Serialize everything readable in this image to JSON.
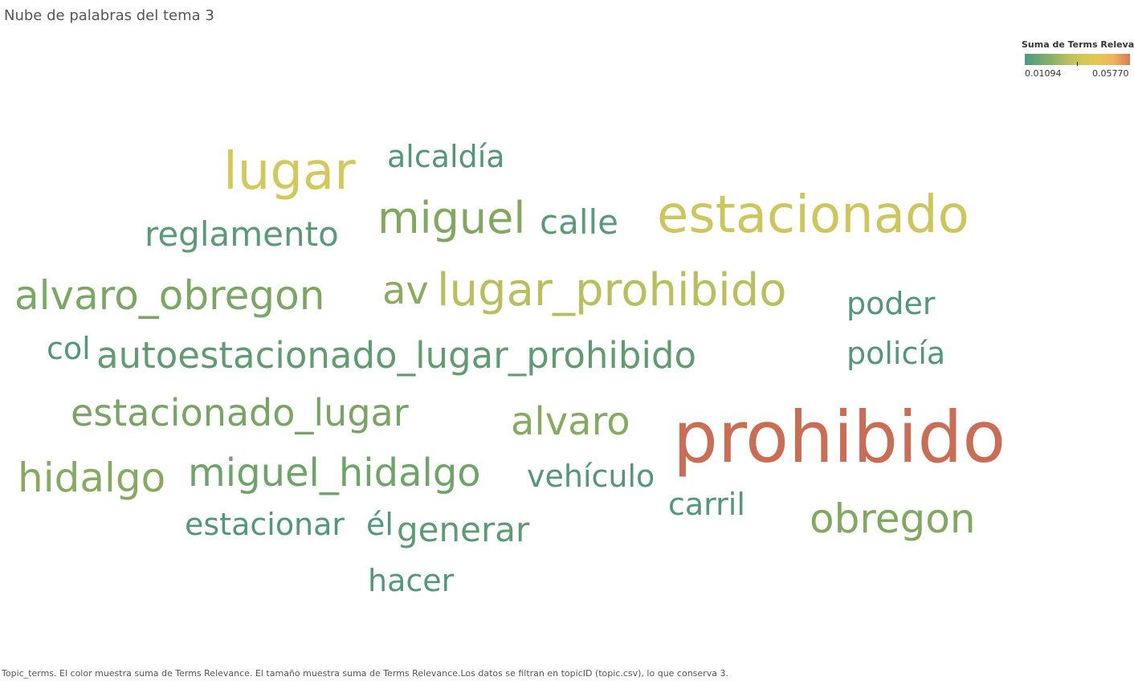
{
  "title": "Nube de palabras del tema 3",
  "legend": {
    "title": "Suma de Terms Relevan..",
    "min_label": "0.01094",
    "max_label": "0.05770"
  },
  "footer": "Topic_terms. El color muestra suma de Terms Relevance. El tamaño muestra suma de Terms Relevance.Los datos se filtran en topicID (topic.csv), lo que conserva 3.",
  "chart_data": {
    "type": "wordcloud",
    "measure": "Suma de Terms Relevance",
    "color_range": [
      0.01094,
      0.0577
    ],
    "color_scale": [
      "#4e9a7e",
      "#87b268",
      "#c9c55a",
      "#e2c94f",
      "#f0b45a",
      "#d87a55"
    ],
    "words": [
      {
        "text": "prohibido",
        "value": 0.0577,
        "color": "#c96d55"
      },
      {
        "text": "estacionado",
        "value": 0.041,
        "color": "#cdc65a"
      },
      {
        "text": "lugar",
        "value": 0.04,
        "color": "#d3c85a"
      },
      {
        "text": "lugar_prohibido",
        "value": 0.034,
        "color": "#b9bf5c"
      },
      {
        "text": "alvaro_obregon",
        "value": 0.026,
        "color": "#7aa864"
      },
      {
        "text": "obregon",
        "value": 0.024,
        "color": "#7fa960"
      },
      {
        "text": "miguel",
        "value": 0.024,
        "color": "#80a85f"
      },
      {
        "text": "hidalgo",
        "value": 0.024,
        "color": "#86ab60"
      },
      {
        "text": "miguel_hidalgo",
        "value": 0.022,
        "color": "#6fa469"
      },
      {
        "text": "av",
        "value": 0.022,
        "color": "#8aac5f"
      },
      {
        "text": "alvaro",
        "value": 0.022,
        "color": "#86ab60"
      },
      {
        "text": "estacionado_lugar",
        "value": 0.02,
        "color": "#77a664"
      },
      {
        "text": "autoestacionado_lugar_prohibido",
        "value": 0.019,
        "color": "#5f9d70"
      },
      {
        "text": "reglamento",
        "value": 0.017,
        "color": "#5a9a76"
      },
      {
        "text": "generar",
        "value": 0.017,
        "color": "#5d9b73"
      },
      {
        "text": "calle",
        "value": 0.016,
        "color": "#5a9a76"
      },
      {
        "text": "alcaldía",
        "value": 0.015,
        "color": "#53977a"
      },
      {
        "text": "poder",
        "value": 0.015,
        "color": "#53977a"
      },
      {
        "text": "policía",
        "value": 0.015,
        "color": "#53977a"
      },
      {
        "text": "col",
        "value": 0.015,
        "color": "#53977a"
      },
      {
        "text": "vehículo",
        "value": 0.015,
        "color": "#53977a"
      },
      {
        "text": "hacer",
        "value": 0.015,
        "color": "#53977a"
      },
      {
        "text": "estacionar",
        "value": 0.014,
        "color": "#50977b"
      },
      {
        "text": "carril",
        "value": 0.014,
        "color": "#50977b"
      },
      {
        "text": "él",
        "value": 0.014,
        "color": "#50977b"
      }
    ]
  }
}
